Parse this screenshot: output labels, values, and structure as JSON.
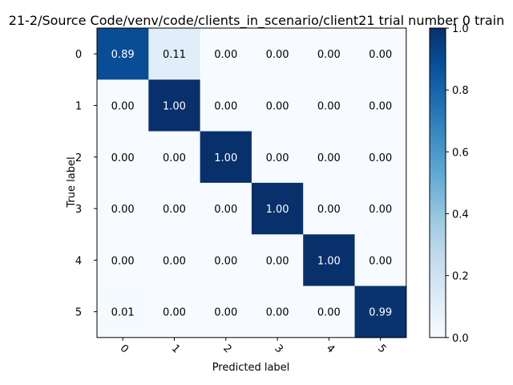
{
  "chart_data": {
    "type": "heatmap",
    "title": "21-2/Source Code/venv/code/clients_in_scenario/client21 trial number 0 train",
    "xlabel": "Predicted label",
    "ylabel": "True label",
    "x_categories": [
      "0",
      "1",
      "2",
      "3",
      "4",
      "5"
    ],
    "y_categories": [
      "0",
      "1",
      "2",
      "3",
      "4",
      "5"
    ],
    "values": [
      [
        0.89,
        0.11,
        0.0,
        0.0,
        0.0,
        0.0
      ],
      [
        0.0,
        1.0,
        0.0,
        0.0,
        0.0,
        0.0
      ],
      [
        0.0,
        0.0,
        1.0,
        0.0,
        0.0,
        0.0
      ],
      [
        0.0,
        0.0,
        0.0,
        1.0,
        0.0,
        0.0
      ],
      [
        0.0,
        0.0,
        0.0,
        0.0,
        1.0,
        0.0
      ],
      [
        0.01,
        0.0,
        0.0,
        0.0,
        0.0,
        0.99
      ]
    ],
    "colormap": "Blues",
    "colorbar": {
      "range": [
        0.0,
        1.0
      ],
      "ticks": [
        "0.0",
        "0.2",
        "0.4",
        "0.6",
        "0.8",
        "1.0"
      ]
    },
    "x_tick_rotation": 45,
    "grid": false
  }
}
